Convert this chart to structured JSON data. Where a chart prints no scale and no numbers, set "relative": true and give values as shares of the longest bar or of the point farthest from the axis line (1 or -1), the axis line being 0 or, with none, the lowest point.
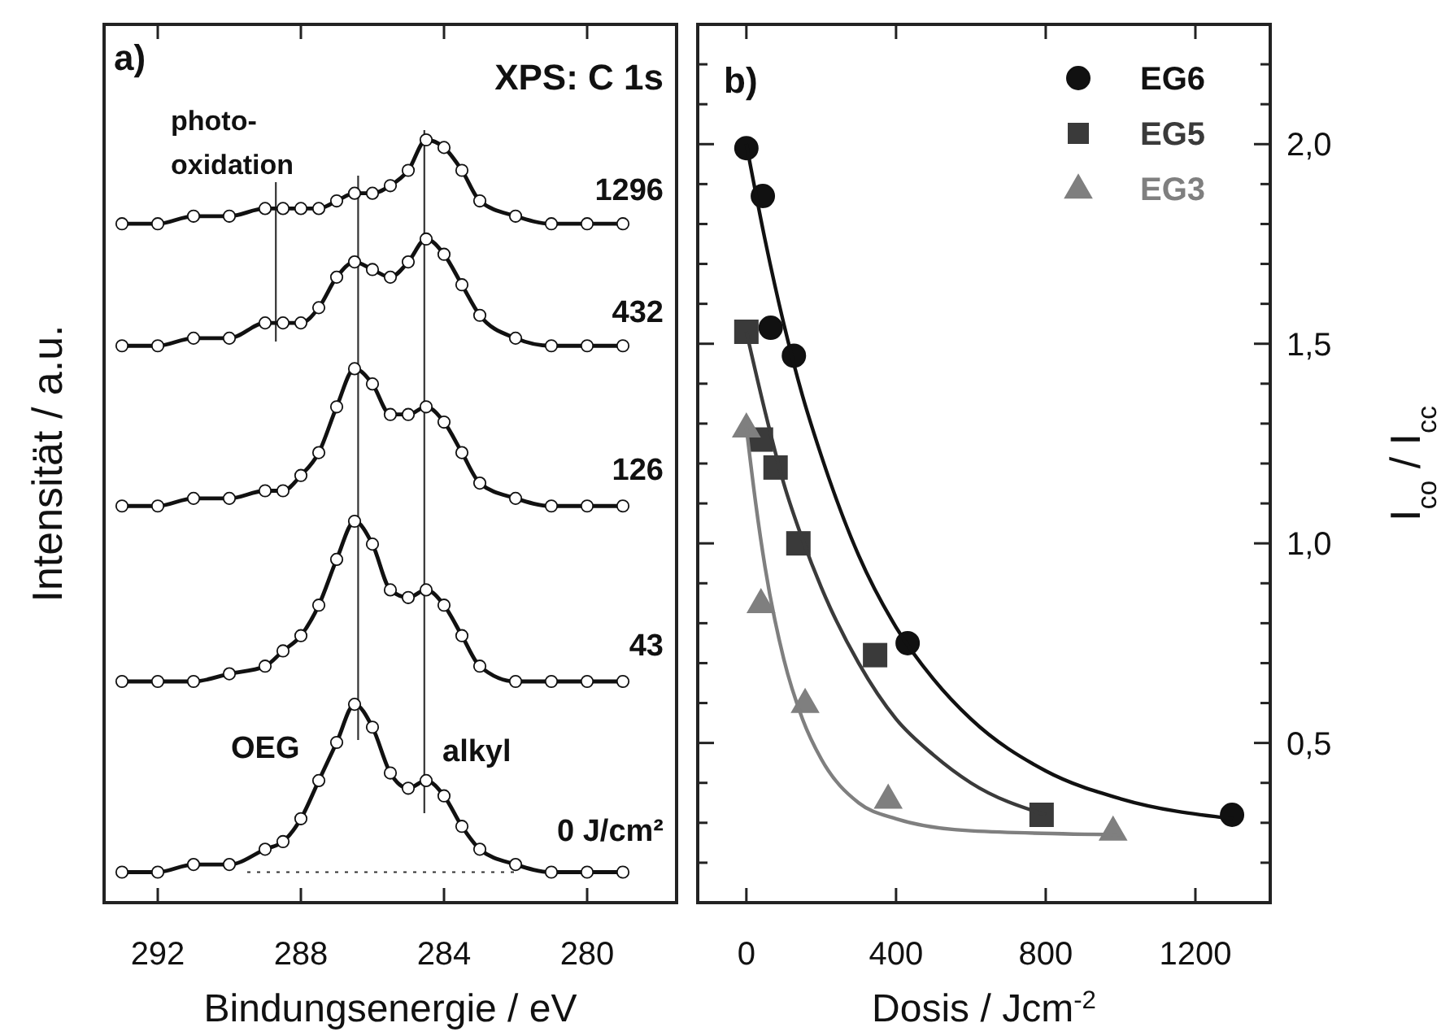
{
  "chart_data": [
    {
      "type": "line",
      "title": "XPS: C 1s",
      "xlabel": "Bindungsenergie / eV",
      "ylabel": "Intensität / a.u.",
      "relative": true,
      "tick_labels": "x",
      "marker": "circle",
      "line_style": "solid",
      "x": [
        293,
        292,
        291,
        290,
        289,
        288.5,
        288,
        287.5,
        287,
        286.5,
        286,
        285.5,
        285,
        284.5,
        284,
        283.5,
        283,
        282,
        281,
        280,
        279
      ],
      "xlim": [
        293.5,
        277.5
      ],
      "xticks": [
        292,
        288,
        284,
        280
      ],
      "series": [
        {
          "color": "#111111",
          "values": [
            0.04,
            0.04,
            0.05,
            0.05,
            0.07,
            0.08,
            0.11,
            0.16,
            0.21,
            0.26,
            0.23,
            0.17,
            0.15,
            0.16,
            0.14,
            0.1,
            0.07,
            0.05,
            0.04,
            0.04,
            0.04
          ]
        },
        {
          "color": "#111111",
          "values": [
            0.29,
            0.29,
            0.29,
            0.3,
            0.31,
            0.33,
            0.35,
            0.39,
            0.45,
            0.5,
            0.47,
            0.41,
            0.4,
            0.41,
            0.39,
            0.35,
            0.31,
            0.29,
            0.29,
            0.29,
            0.29
          ]
        },
        {
          "color": "#111111",
          "values": [
            0.52,
            0.52,
            0.53,
            0.53,
            0.54,
            0.54,
            0.56,
            0.59,
            0.65,
            0.7,
            0.68,
            0.64,
            0.64,
            0.65,
            0.63,
            0.59,
            0.55,
            0.53,
            0.52,
            0.52,
            0.52
          ]
        },
        {
          "color": "#111111",
          "values": [
            0.73,
            0.73,
            0.74,
            0.74,
            0.76,
            0.76,
            0.76,
            0.78,
            0.82,
            0.84,
            0.83,
            0.82,
            0.84,
            0.87,
            0.85,
            0.81,
            0.77,
            0.74,
            0.73,
            0.73,
            0.73
          ]
        },
        {
          "color": "#111111",
          "values": [
            0.89,
            0.89,
            0.9,
            0.9,
            0.91,
            0.91,
            0.91,
            0.91,
            0.92,
            0.93,
            0.93,
            0.94,
            0.96,
            1,
            0.99,
            0.96,
            0.92,
            0.9,
            0.89,
            0.89,
            0.89
          ]
        }
      ],
      "ref_lines": [
        {
          "axis": "x",
          "value": 288.7,
          "color": "#333333"
        },
        {
          "axis": "x",
          "value": 286.4,
          "color": "#333333"
        },
        {
          "axis": "x",
          "value": 284.55,
          "color": "#333333"
        },
        {
          "axis": "y",
          "value": 0.04,
          "color": "#333333",
          "line_style": "dotted"
        }
      ],
      "annotations": [
        "a)",
        "photo-\noxidation",
        "OEG",
        "alkyl",
        "1296",
        "432",
        "126",
        "43",
        "0 J/cm²"
      ]
    },
    {
      "type": "scatter",
      "xlabel": "Dosis / Jcm$^{-2}$",
      "y2label": "I$_{co}$ / I$_{cc}$",
      "legend": "top right",
      "xlim": [
        -130,
        1400
      ],
      "xticks": [
        0,
        400,
        800,
        1200
      ],
      "y2lim": [
        0.1,
        2.3
      ],
      "y2ticks": [
        {
          "value": 0.2,
          "label": null
        },
        {
          "value": 0.3,
          "label": null
        },
        {
          "value": 0.4,
          "label": null
        },
        {
          "value": 0.5,
          "label": "0,5"
        },
        {
          "value": 0.6,
          "label": null
        },
        {
          "value": 0.7,
          "label": null
        },
        {
          "value": 0.8,
          "label": null
        },
        {
          "value": 0.9,
          "label": null
        },
        {
          "value": 1,
          "label": "1,0"
        },
        {
          "value": 1.1,
          "label": null
        },
        {
          "value": 1.2,
          "label": null
        },
        {
          "value": 1.3,
          "label": null
        },
        {
          "value": 1.4,
          "label": null
        },
        {
          "value": 1.5,
          "label": "1,5"
        },
        {
          "value": 1.6,
          "label": null
        },
        {
          "value": 1.7,
          "label": null
        },
        {
          "value": 1.8,
          "label": null
        },
        {
          "value": 1.9,
          "label": null
        },
        {
          "value": 2,
          "label": "2,0"
        },
        {
          "value": 2.1,
          "label": null
        },
        {
          "value": 2.2,
          "label": null
        }
      ],
      "series": [
        {
          "name": "EG6",
          "color": "#111111",
          "marker": "circle",
          "axis": "y2",
          "x": [
            0,
            44,
            65,
            127,
            431,
            1298
          ],
          "values": [
            1.99,
            1.87,
            1.54,
            1.47,
            0.75,
            0.32
          ]
        },
        {
          "name": "EG5",
          "color": "#3a3a3a",
          "marker": "square",
          "axis": "y2",
          "x": [
            0,
            39,
            78,
            139,
            344,
            789
          ],
          "values": [
            1.53,
            1.26,
            1.19,
            1.0,
            0.72,
            0.32
          ]
        },
        {
          "name": "EG3",
          "color": "#7f7f7f",
          "marker": "triangle",
          "axis": "y2",
          "x": [
            0,
            39,
            157,
            379,
            980
          ],
          "values": [
            1.29,
            0.85,
            0.6,
            0.36,
            0.28
          ]
        },
        {
          "type": "line",
          "color": "#111111",
          "marker": "none",
          "axis": "y2",
          "x": [
            0,
            50,
            100,
            150,
            200,
            300,
            400,
            500,
            600,
            800,
            1000,
            1300
          ],
          "values": [
            2.0,
            1.76,
            1.55,
            1.37,
            1.22,
            0.97,
            0.79,
            0.66,
            0.56,
            0.43,
            0.36,
            0.31
          ]
        },
        {
          "type": "line",
          "color": "#3a3a3a",
          "marker": "none",
          "axis": "y2",
          "x": [
            0,
            50,
            100,
            150,
            200,
            300,
            400,
            500,
            600,
            800
          ],
          "values": [
            1.53,
            1.33,
            1.15,
            1.01,
            0.89,
            0.7,
            0.56,
            0.47,
            0.4,
            0.32
          ]
        },
        {
          "type": "line",
          "color": "#7f7f7f",
          "marker": "none",
          "axis": "y2",
          "x": [
            0,
            25,
            50,
            100,
            150,
            200,
            300,
            400,
            600,
            1000
          ],
          "values": [
            1.29,
            1.1,
            0.94,
            0.71,
            0.56,
            0.46,
            0.35,
            0.31,
            0.28,
            0.27
          ]
        }
      ],
      "annotations": [
        "b)"
      ]
    }
  ]
}
